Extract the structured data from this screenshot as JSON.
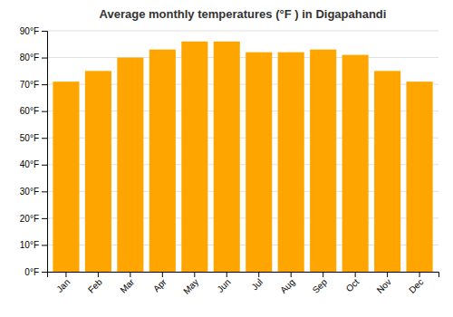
{
  "chart_data": {
    "type": "bar",
    "title": "Average monthly temperatures (°F ) in Digapahandi",
    "categories": [
      "Jan",
      "Feb",
      "Mar",
      "Apr",
      "May",
      "Jun",
      "Jul",
      "Aug",
      "Sep",
      "Oct",
      "Nov",
      "Dec"
    ],
    "values": [
      71,
      75,
      80,
      83,
      86,
      86,
      82,
      82,
      83,
      81,
      75,
      71
    ],
    "color": "#FFA500",
    "ylim": [
      0,
      90
    ],
    "yticks": [
      {
        "value": 0,
        "label": "0°F"
      },
      {
        "value": 10,
        "label": "10°F"
      },
      {
        "value": 20,
        "label": "20°F"
      },
      {
        "value": 30,
        "label": "30°F"
      },
      {
        "value": 40,
        "label": "40°F"
      },
      {
        "value": 50,
        "label": "50°F"
      },
      {
        "value": 60,
        "label": "60°F"
      },
      {
        "value": 70,
        "label": "70°F"
      },
      {
        "value": 80,
        "label": "80°F"
      },
      {
        "value": 90,
        "label": "90°F"
      }
    ],
    "grid": true
  }
}
